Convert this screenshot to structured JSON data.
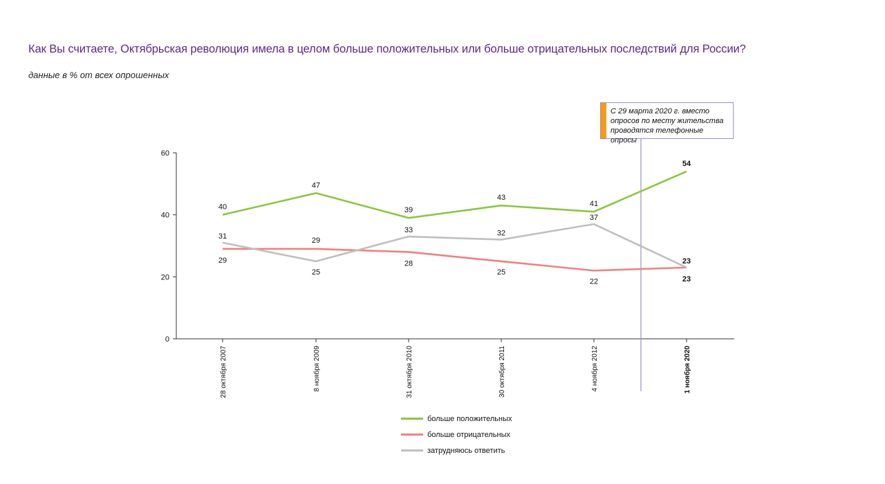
{
  "title": "Как Вы считаете, Октябрьская революция имела в целом больше положительных или больше отрицательных последствий для России?",
  "subtitle": "данные в % от всех опрошенных",
  "annotation": {
    "text": "С 29 марта 2020 г. вместо опросов по месту жительства проводятся телефонные опросы",
    "accent_color": "#f39b16"
  },
  "colors": {
    "title": "#5b2a86",
    "positive": "#8cc63f",
    "negative": "#f08080",
    "unsure": "#bfbfbf",
    "divider": "#9b8fbe"
  },
  "chart_data": {
    "type": "line",
    "categories": [
      "28 октября 2007",
      "8 ноября 2009",
      "31 октября 2010",
      "30 октября 2011",
      "4 ноября 2012",
      "1 ноября 2020"
    ],
    "bold_categories": [
      "1 ноября 2020"
    ],
    "y_ticks": [
      0,
      20,
      40,
      60
    ],
    "ylim": [
      0,
      60
    ],
    "grid": false,
    "legend_position": "bottom",
    "series": [
      {
        "name": "больше положительных",
        "color": "#8cc63f",
        "values": [
          40,
          47,
          39,
          43,
          41,
          54
        ]
      },
      {
        "name": "больше отрицательных",
        "color": "#f08080",
        "values": [
          29,
          29,
          28,
          25,
          22,
          23
        ]
      },
      {
        "name": "затрудняюсь ответить",
        "color": "#bfbfbf",
        "values": [
          31,
          25,
          33,
          32,
          37,
          23
        ]
      }
    ]
  }
}
